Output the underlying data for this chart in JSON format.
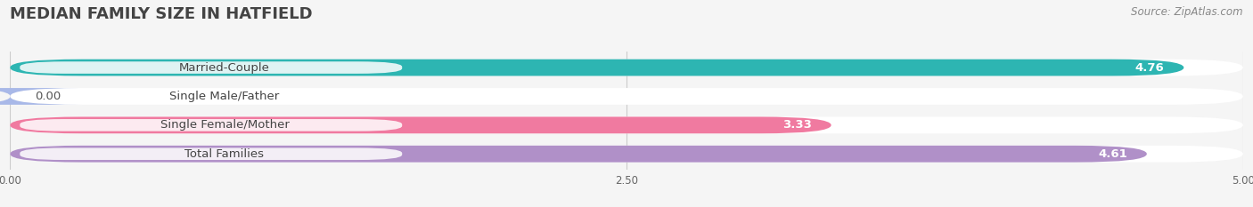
{
  "title": "MEDIAN FAMILY SIZE IN HATFIELD",
  "source": "Source: ZipAtlas.com",
  "categories": [
    "Married-Couple",
    "Single Male/Father",
    "Single Female/Mother",
    "Total Families"
  ],
  "values": [
    4.76,
    0.0,
    3.33,
    4.61
  ],
  "bar_colors": [
    "#2db5b2",
    "#a8b8e8",
    "#f07aA0",
    "#b090c8"
  ],
  "xlim_max": 5.0,
  "xticks": [
    0.0,
    2.5,
    5.0
  ],
  "xtick_labels": [
    "0.00",
    "2.50",
    "5.00"
  ],
  "bar_height": 0.58,
  "background_color": "#f5f5f5",
  "bar_track_color": "#e2e2e2",
  "label_fontsize": 9.5,
  "value_fontsize": 9.5,
  "title_fontsize": 13,
  "source_fontsize": 8.5,
  "title_color": "#444444",
  "source_color": "#888888"
}
